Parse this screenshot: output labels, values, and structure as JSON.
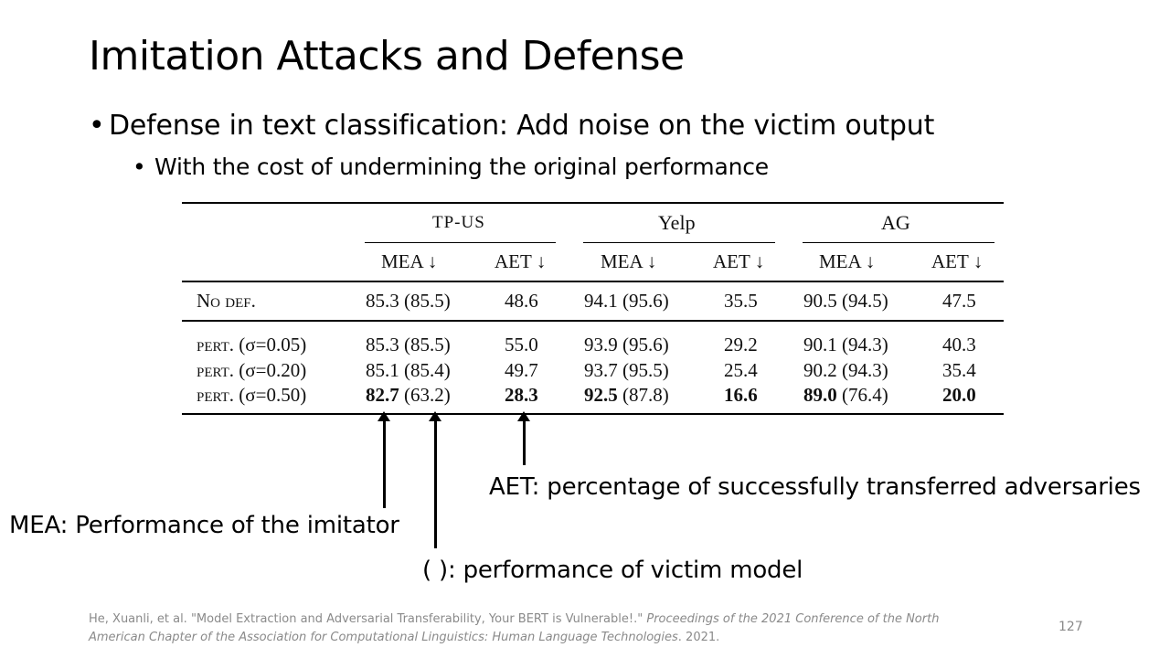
{
  "slide": {
    "title": "Imitation Attacks and Defense",
    "bullet_1": "Defense in text classification: Add noise on the victim output",
    "bullet_2": "With the cost of undermining the original performance",
    "page_number": "127"
  },
  "table": {
    "groups": [
      "TP-US",
      "Yelp",
      "AG"
    ],
    "subheaders": [
      "MEA ↓",
      "AET ↓",
      "MEA ↓",
      "AET ↓",
      "MEA ↓",
      "AET ↓"
    ],
    "rows": [
      {
        "label": "No def.",
        "mea1": "85.3",
        "mea1v": "(85.5)",
        "aet1": "48.6",
        "mea2": "94.1",
        "mea2v": "(95.6)",
        "aet2": "35.5",
        "mea3": "90.5",
        "mea3v": "(94.5)",
        "aet3": "47.5"
      },
      {
        "label": "pert.",
        "sigma": "(σ=0.05)",
        "mea1": "85.3",
        "mea1v": "(85.5)",
        "aet1": "55.0",
        "mea2": "93.9",
        "mea2v": "(95.6)",
        "aet2": "29.2",
        "mea3": "90.1",
        "mea3v": "(94.3)",
        "aet3": "40.3"
      },
      {
        "label": "pert.",
        "sigma": "(σ=0.20)",
        "mea1": "85.1",
        "mea1v": "(85.4)",
        "aet1": "49.7",
        "mea2": "93.7",
        "mea2v": "(95.5)",
        "aet2": "25.4",
        "mea3": "90.2",
        "mea3v": "(94.3)",
        "aet3": "35.4"
      },
      {
        "label": "pert.",
        "sigma": "(σ=0.50)",
        "mea1": "82.7",
        "mea1v": "(63.2)",
        "aet1": "28.3",
        "mea2": "92.5",
        "mea2v": "(87.8)",
        "aet2": "16.6",
        "mea3": "89.0",
        "mea3v": "(76.4)",
        "aet3": "20.0"
      }
    ]
  },
  "annotations": {
    "aet": "AET: percentage of successfully transferred adversaries",
    "mea": "MEA: Performance of the imitator",
    "victim": "( ): performance of victim model"
  },
  "citation": {
    "plain": "He, Xuanli, et al. \"Model Extraction and Adversarial Transferability, Your BERT is Vulnerable!.\"",
    "italic": "Proceedings of the 2021 Conference of the North American Chapter of the Association for Computational Linguistics: Human Language Technologies",
    "year": ". 2021."
  }
}
